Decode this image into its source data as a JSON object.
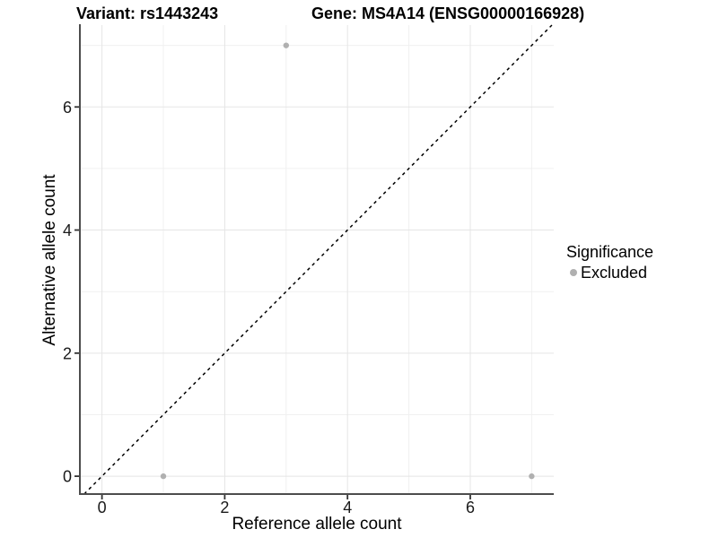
{
  "title": {
    "variant": "Variant: rs1443243",
    "gene": "Gene: MS4A14 (ENSG00000166928)"
  },
  "chart_data": {
    "type": "scatter",
    "xlabel": "Reference allele count",
    "ylabel": "Alternative allele count",
    "xlim": [
      -0.36,
      7.36
    ],
    "ylim": [
      -0.29,
      7.33
    ],
    "x_major_ticks": [
      0,
      2,
      4,
      6
    ],
    "x_minor_gridlines": [
      1,
      3,
      5,
      7
    ],
    "y_major_ticks": [
      0,
      2,
      4,
      6
    ],
    "y_minor_gridlines": [
      1,
      3,
      5,
      7
    ],
    "grid": true,
    "reference_line": {
      "kind": "identity y=x",
      "style": "dashed",
      "color": "#000000"
    },
    "series": [
      {
        "name": "Excluded",
        "color": "#b0b0b0",
        "points": [
          {
            "x": 1,
            "y": 0
          },
          {
            "x": 7,
            "y": 0
          },
          {
            "x": 3,
            "y": 7
          }
        ]
      }
    ],
    "legend": {
      "title": "Significance",
      "position": "right",
      "items": [
        {
          "label": "Excluded",
          "color": "#b0b0b0"
        }
      ]
    },
    "style": {
      "point_color": "#b0b0b0",
      "grid_major_color": "#e5e5e5",
      "grid_minor_color": "#f0f0f0",
      "axis_line_color": "#4d4d4d",
      "tick_mark_color": "#333333",
      "tick_label_color": "#1a1a1a",
      "background": "#ffffff"
    }
  }
}
